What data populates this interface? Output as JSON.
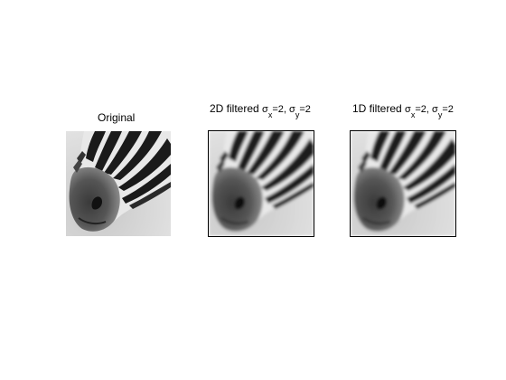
{
  "panels": [
    {
      "title": "Original"
    },
    {
      "title": "2D filtered",
      "subtitle": "σx=2, σy=2",
      "sigma_x": "2",
      "sigma_y": "2"
    },
    {
      "title": "1D filtered",
      "subtitle": "σx=2, σy=2",
      "sigma_x": "2",
      "sigma_y": "2"
    }
  ],
  "image_subject": "zebra-head-grayscale"
}
